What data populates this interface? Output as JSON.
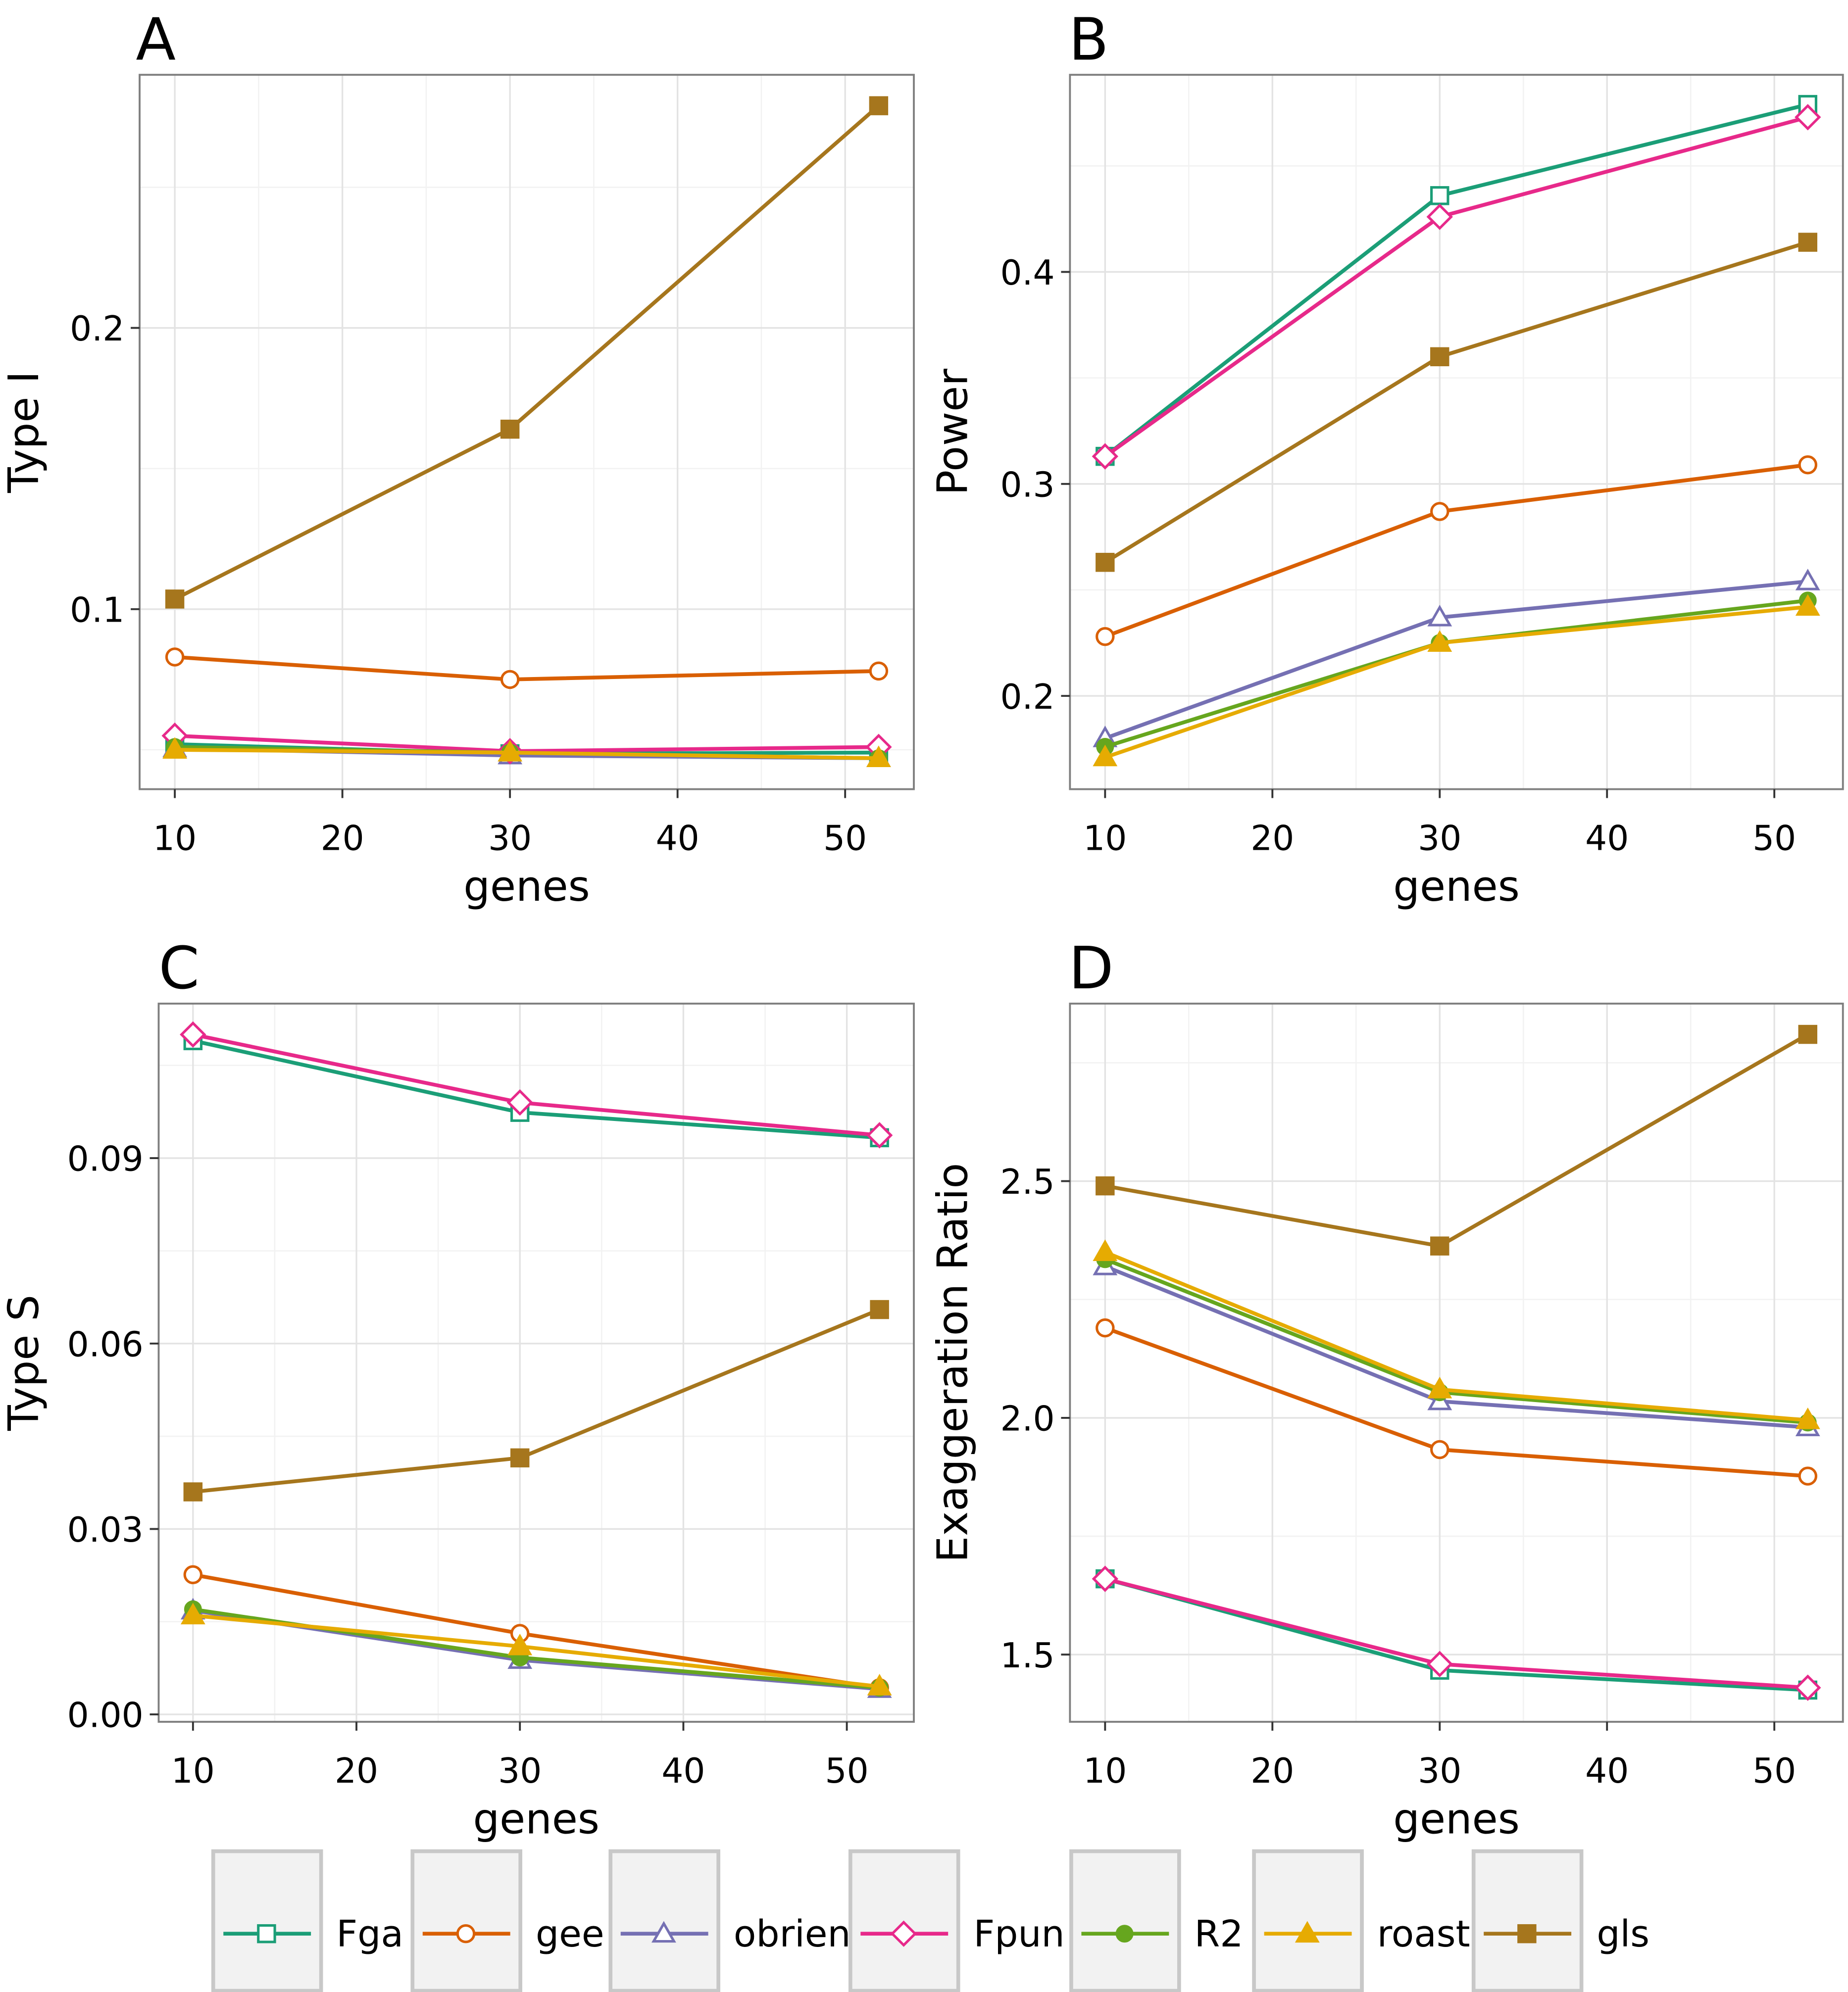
{
  "series_styles": [
    {
      "name": "Fga",
      "color": "#1b9e77",
      "shape": "open-square"
    },
    {
      "name": "gee",
      "color": "#d95f02",
      "shape": "open-circle"
    },
    {
      "name": "obrien",
      "color": "#7570b3",
      "shape": "open-triangle"
    },
    {
      "name": "Fpun",
      "color": "#e7298a",
      "shape": "open-diamond"
    },
    {
      "name": "R2",
      "color": "#66a61e",
      "shape": "filled-circle"
    },
    {
      "name": "roast",
      "color": "#e6ab02",
      "shape": "filled-triangle"
    },
    {
      "name": "gls",
      "color": "#a6761d",
      "shape": "filled-square"
    }
  ],
  "legend": {
    "placement": "bottom",
    "labels": [
      "Fga",
      "gee",
      "obrien",
      "Fpun",
      "R2",
      "roast",
      "gls"
    ]
  },
  "chart_data": [
    {
      "panel": "A",
      "type": "line",
      "xlabel": "genes",
      "ylabel": "Type I",
      "x": [
        10,
        30,
        52
      ],
      "xlim": [
        7.9,
        54.1
      ],
      "ylim": [
        0.036,
        0.29
      ],
      "xticks": [
        10,
        20,
        30,
        40,
        50
      ],
      "yticks": [
        0.1,
        0.2
      ],
      "ytick_labels": [
        "0.1",
        "0.2"
      ],
      "grid": true,
      "series": [
        {
          "name": "Fga",
          "values": [
            0.052,
            0.0486,
            0.049
          ]
        },
        {
          "name": "gee",
          "values": [
            0.083,
            0.075,
            0.078
          ]
        },
        {
          "name": "obrien",
          "values": [
            0.0505,
            0.048,
            0.047
          ]
        },
        {
          "name": "Fpun",
          "values": [
            0.055,
            0.0495,
            0.051
          ]
        },
        {
          "name": "R2",
          "values": [
            0.051,
            0.049,
            0.047
          ]
        },
        {
          "name": "roast",
          "values": [
            0.05,
            0.049,
            0.047
          ]
        },
        {
          "name": "gls",
          "values": [
            0.1036,
            0.164,
            0.279
          ]
        }
      ]
    },
    {
      "panel": "B",
      "type": "line",
      "xlabel": "genes",
      "ylabel": "Power",
      "x": [
        10,
        30,
        52
      ],
      "xlim": [
        7.9,
        54.1
      ],
      "ylim": [
        0.156,
        0.493
      ],
      "xticks": [
        10,
        20,
        30,
        40,
        50
      ],
      "yticks": [
        0.2,
        0.3,
        0.4
      ],
      "ytick_labels": [
        "0.2",
        "0.3",
        "0.4"
      ],
      "grid": true,
      "series": [
        {
          "name": "Fga",
          "values": [
            0.313,
            0.436,
            0.479
          ]
        },
        {
          "name": "gee",
          "values": [
            0.228,
            0.287,
            0.309
          ]
        },
        {
          "name": "obrien",
          "values": [
            0.18,
            0.237,
            0.254
          ]
        },
        {
          "name": "Fpun",
          "values": [
            0.313,
            0.426,
            0.473
          ]
        },
        {
          "name": "R2",
          "values": [
            0.176,
            0.225,
            0.245
          ]
        },
        {
          "name": "roast",
          "values": [
            0.171,
            0.225,
            0.242
          ]
        },
        {
          "name": "gls",
          "values": [
            0.263,
            0.36,
            0.414
          ]
        }
      ]
    },
    {
      "panel": "C",
      "type": "line",
      "xlabel": "genes",
      "ylabel": "Type S",
      "x": [
        10,
        30,
        52
      ],
      "xlim": [
        7.9,
        54.1
      ],
      "ylim": [
        -0.0012,
        0.115
      ],
      "xticks": [
        10,
        20,
        30,
        40,
        50
      ],
      "yticks": [
        0,
        0.03,
        0.06,
        0.09
      ],
      "ytick_labels": [
        "0.00",
        "0.03",
        "0.06",
        "0.09"
      ],
      "grid": true,
      "series": [
        {
          "name": "Fga",
          "values": [
            0.109,
            0.0974,
            0.0933
          ]
        },
        {
          "name": "gee",
          "values": [
            0.0226,
            0.0131,
            0.0043
          ]
        },
        {
          "name": "obrien",
          "values": [
            0.0168,
            0.0088,
            0.0041
          ]
        },
        {
          "name": "Fpun",
          "values": [
            0.11,
            0.099,
            0.0937
          ]
        },
        {
          "name": "R2",
          "values": [
            0.017,
            0.0092,
            0.0043
          ]
        },
        {
          "name": "roast",
          "values": [
            0.016,
            0.011,
            0.0045
          ]
        },
        {
          "name": "gls",
          "values": [
            0.036,
            0.0415,
            0.0655
          ]
        }
      ]
    },
    {
      "panel": "D",
      "type": "line",
      "xlabel": "genes",
      "ylabel": "Exaggeration Ratio",
      "x": [
        10,
        30,
        52
      ],
      "xlim": [
        7.9,
        54.1
      ],
      "ylim": [
        1.358,
        2.875
      ],
      "xticks": [
        10,
        20,
        30,
        40,
        50
      ],
      "yticks": [
        1.5,
        2.0,
        2.5
      ],
      "ytick_labels": [
        "1.5",
        "2.0",
        "2.5"
      ],
      "grid": true,
      "series": [
        {
          "name": "Fga",
          "values": [
            1.66,
            1.467,
            1.425
          ]
        },
        {
          "name": "gee",
          "values": [
            2.19,
            1.933,
            1.877
          ]
        },
        {
          "name": "obrien",
          "values": [
            2.32,
            2.035,
            1.98
          ]
        },
        {
          "name": "Fpun",
          "values": [
            1.66,
            1.48,
            1.43
          ]
        },
        {
          "name": "R2",
          "values": [
            2.335,
            2.054,
            1.99
          ]
        },
        {
          "name": "roast",
          "values": [
            2.35,
            2.06,
            1.995
          ]
        },
        {
          "name": "gls",
          "values": [
            2.49,
            2.363,
            2.81
          ]
        }
      ]
    }
  ]
}
